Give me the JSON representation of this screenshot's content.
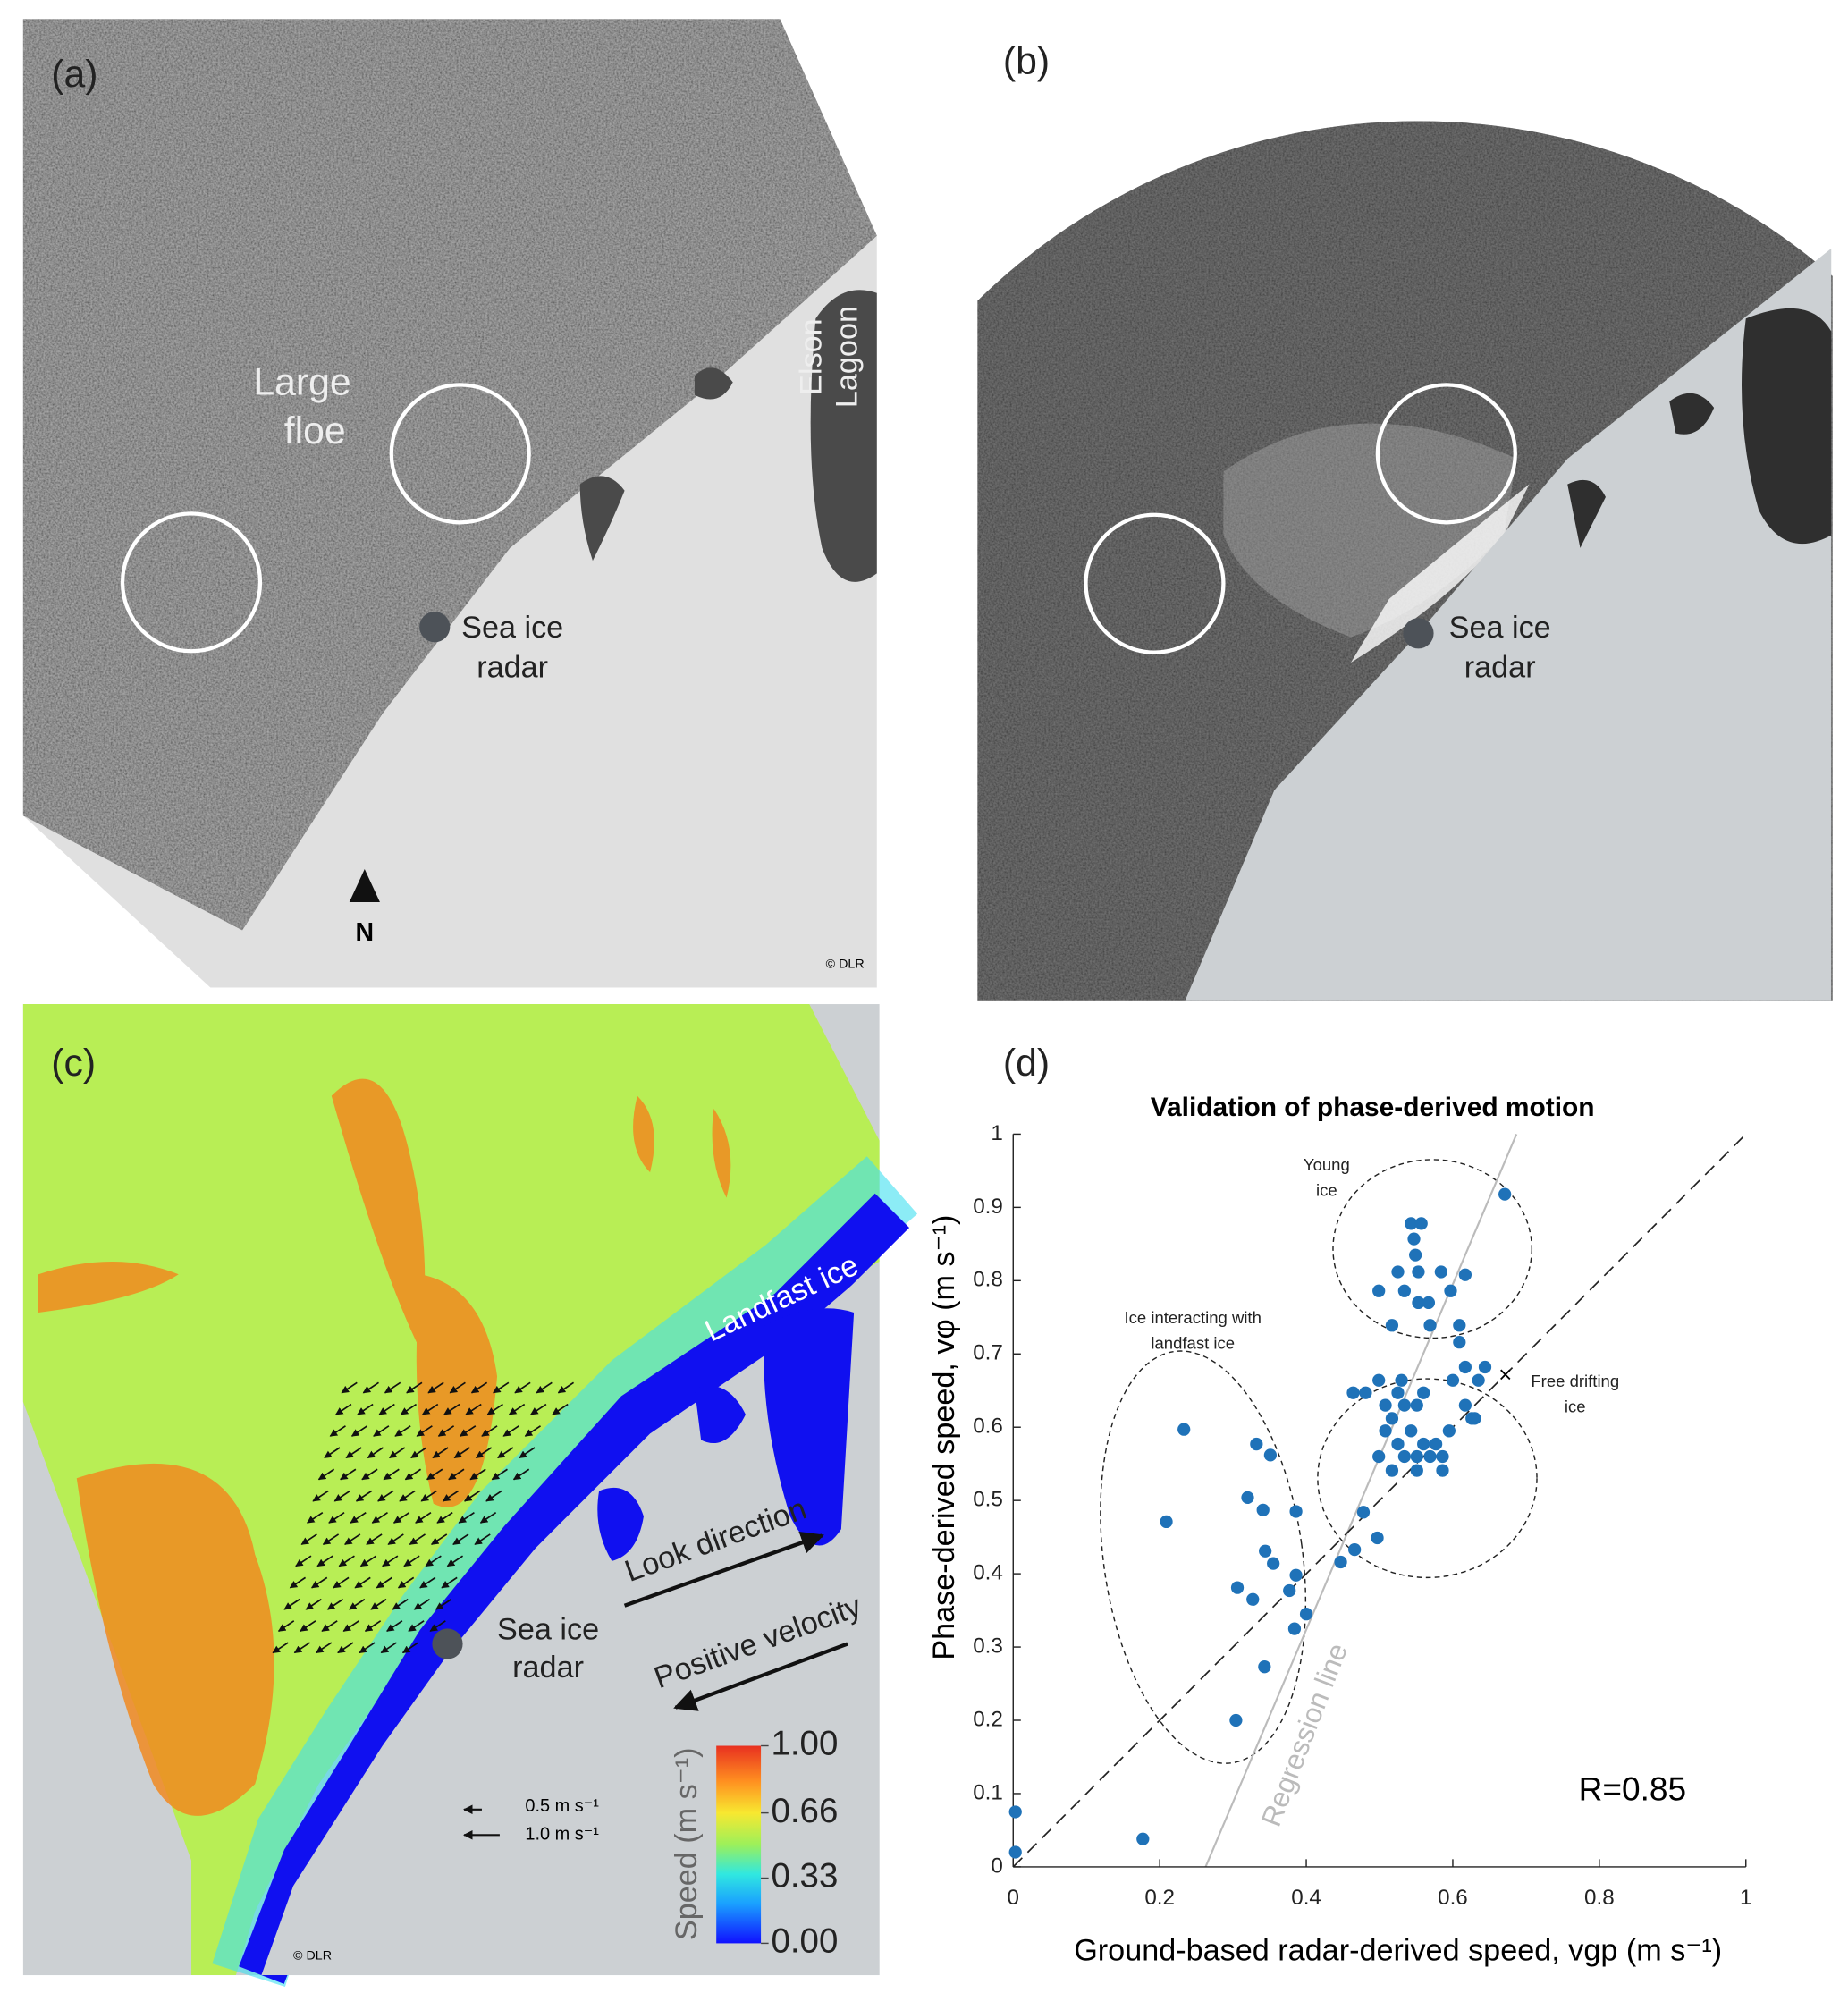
{
  "panel_a": {
    "label": "(a)",
    "floe": [
      "Large",
      "floe"
    ],
    "lagoon": [
      "Elson",
      "Lagoon"
    ],
    "radar": [
      "Sea ice",
      "radar"
    ],
    "north": "N",
    "credit": "© DLR"
  },
  "panel_b": {
    "label": "(b)",
    "radar": [
      "Sea ice",
      "radar"
    ]
  },
  "panel_c": {
    "label": "(c)",
    "landfast": "Landfast ice",
    "radar": [
      "Sea ice",
      "radar"
    ],
    "look": "Look direction",
    "positive": "Positive velocity",
    "scale_legend": [
      "0.5 m s⁻¹",
      "1.0 m s⁻¹"
    ],
    "colorbar_label": "Speed (m s⁻¹)",
    "colorbar_lim": [
      0,
      1
    ],
    "colorbar_ticks": [
      {
        "value": 1,
        "label": "1.00"
      },
      0.66,
      0.33,
      {
        "value": 0,
        "label": "0.00"
      }
    ],
    "credit": "© DLR"
  },
  "chart_data": {
    "type": "scatter",
    "panel_label": "(d)",
    "title": "Validation of phase-derived motion",
    "x_label": "Ground-based radar-derived speed, vgp (m s⁻¹)",
    "y_label": "Phase-derived speed, vφ (m s⁻¹)",
    "color": "#1f72b8",
    "xlim": [
      0,
      1
    ],
    "ylim": [
      0,
      1
    ],
    "xticks": [
      0,
      0.2,
      0.4,
      0.6,
      0.8,
      1
    ],
    "yticks": [
      0,
      0.1,
      0.2,
      0.3,
      0.4,
      0.5,
      0.6,
      0.7,
      0.8,
      0.9,
      1
    ],
    "x": [
      0.003,
      0.003,
      0.177,
      0.209,
      0.233,
      0.304,
      0.306,
      0.32,
      0.332,
      0.351,
      0.341,
      0.327,
      0.344,
      0.355,
      0.343,
      0.377,
      0.386,
      0.386,
      0.384,
      0.4,
      0.447,
      0.466,
      0.478,
      0.497,
      0.464,
      0.481,
      0.499,
      0.508,
      0.517,
      0.525,
      0.53,
      0.534,
      0.508,
      0.525,
      0.543,
      0.551,
      0.56,
      0.499,
      0.517,
      0.534,
      0.551,
      0.569,
      0.586,
      0.56,
      0.577,
      0.595,
      0.6,
      0.617,
      0.626,
      0.617,
      0.635,
      0.63,
      0.586,
      0.551,
      0.609,
      0.644,
      0.499,
      0.517,
      0.534,
      0.543,
      0.547,
      0.557,
      0.549,
      0.553,
      0.553,
      0.567,
      0.584,
      0.597,
      0.569,
      0.609,
      0.617,
      0.525,
      0.671
    ],
    "y": [
      0.075,
      0.02,
      0.038,
      0.471,
      0.597,
      0.2,
      0.381,
      0.504,
      0.577,
      0.562,
      0.487,
      0.365,
      0.431,
      0.414,
      0.273,
      0.377,
      0.398,
      0.485,
      0.325,
      0.345,
      0.416,
      0.433,
      0.484,
      0.449,
      0.647,
      0.647,
      0.664,
      0.63,
      0.612,
      0.647,
      0.664,
      0.63,
      0.595,
      0.577,
      0.595,
      0.63,
      0.647,
      0.56,
      0.541,
      0.56,
      0.56,
      0.56,
      0.56,
      0.577,
      0.577,
      0.595,
      0.664,
      0.63,
      0.612,
      0.682,
      0.664,
      0.612,
      0.541,
      0.541,
      0.716,
      0.682,
      0.786,
      0.739,
      0.786,
      0.878,
      0.857,
      0.878,
      0.835,
      0.812,
      0.77,
      0.77,
      0.812,
      0.786,
      0.739,
      0.739,
      0.808,
      0.812,
      0.918
    ],
    "annotations": {
      "young": [
        "Young",
        "ice"
      ],
      "interacting": [
        "Ice interacting with",
        "landfast ice"
      ],
      "free": [
        "Free drifting",
        "ice"
      ],
      "regression": "Regression line",
      "r": "R=0.85"
    }
  }
}
